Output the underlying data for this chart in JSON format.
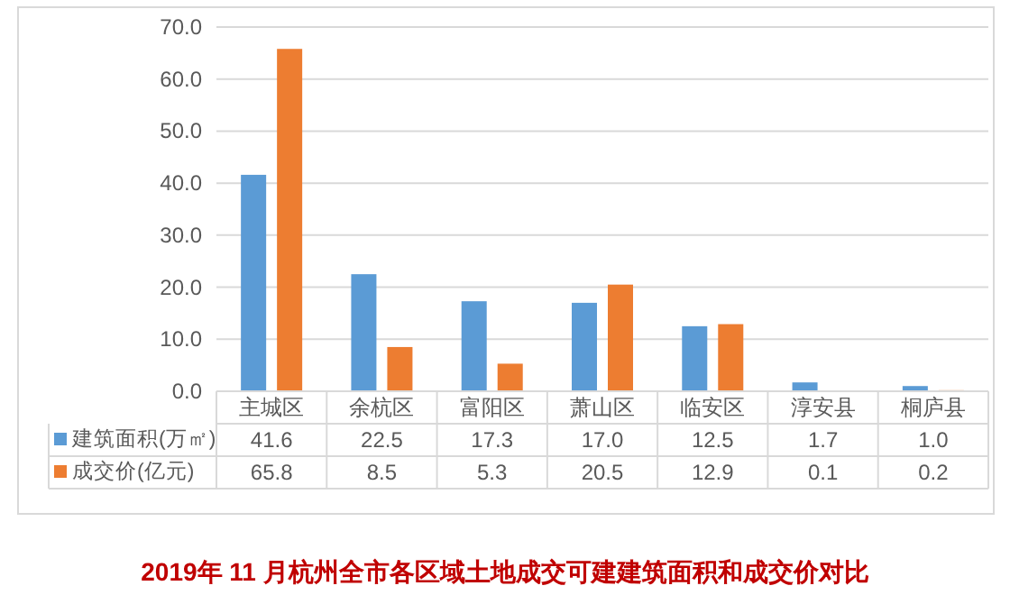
{
  "chart_data": {
    "type": "bar",
    "title": "2019年 11 月杭州全市各区域土地成交可建建筑面积和成交价对比",
    "categories": [
      "主城区",
      "余杭区",
      "富阳区",
      "萧山区",
      "临安区",
      "淳安县",
      "桐庐县"
    ],
    "series": [
      {
        "name": "建筑面积(万㎡)",
        "color": "#5b9bd5",
        "values": [
          41.6,
          22.5,
          17.3,
          17.0,
          12.5,
          1.7,
          1.0
        ],
        "value_labels": [
          "41.6",
          "22.5",
          "17.3",
          "17.0",
          "12.5",
          "1.7",
          "1.0"
        ]
      },
      {
        "name": "成交价(亿元)",
        "color": "#ed7d31",
        "values": [
          65.8,
          8.5,
          5.3,
          20.5,
          12.9,
          0.1,
          0.2
        ],
        "value_labels": [
          "65.8",
          "8.5",
          "5.3",
          "20.5",
          "12.9",
          "0.1",
          "0.2"
        ]
      }
    ],
    "ylim": [
      0,
      70
    ],
    "yticks": [
      {
        "value": 0,
        "label": "0.0"
      },
      {
        "value": 10,
        "label": "10.0"
      },
      {
        "value": 20,
        "label": "20.0"
      },
      {
        "value": 30,
        "label": "30.0"
      },
      {
        "value": 40,
        "label": "40.0"
      },
      {
        "value": 50,
        "label": "50.0"
      },
      {
        "value": 60,
        "label": "60.0"
      },
      {
        "value": 70,
        "label": "70.0"
      }
    ],
    "grid": "y",
    "legend": "bottom left"
  }
}
